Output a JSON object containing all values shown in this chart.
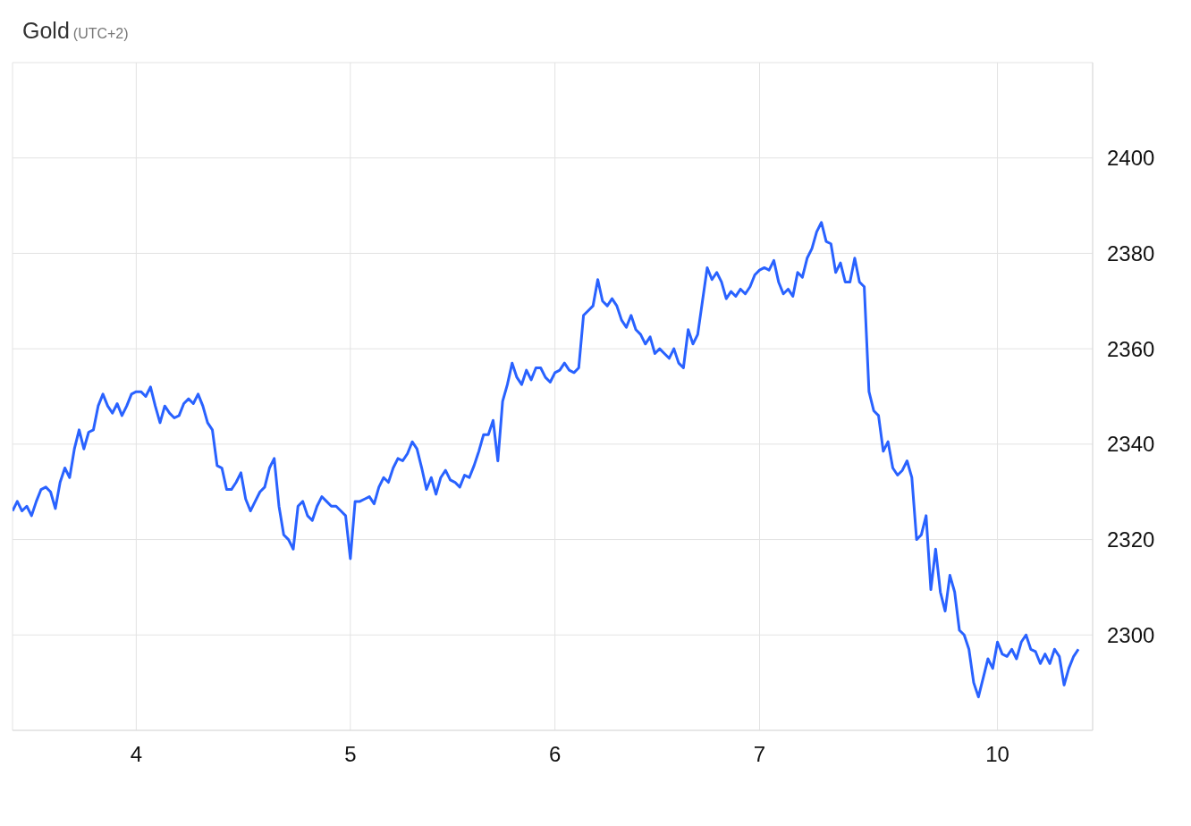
{
  "chart_data": {
    "type": "line",
    "title": "Gold",
    "subtitle": "(UTC+2)",
    "categories": [
      null,
      null,
      null,
      null,
      null,
      null,
      null,
      null,
      null,
      null,
      null,
      null,
      null,
      null,
      null,
      null,
      null,
      null,
      null,
      null,
      null,
      null,
      null,
      null,
      null,
      null,
      "4",
      null,
      null,
      null,
      null,
      null,
      null,
      null,
      null,
      null,
      null,
      null,
      null,
      null,
      null,
      null,
      null,
      null,
      null,
      null,
      null,
      null,
      null,
      null,
      null,
      null,
      null,
      null,
      null,
      null,
      null,
      null,
      null,
      null,
      null,
      null,
      null,
      null,
      null,
      null,
      null,
      null,
      null,
      null,
      null,
      "5",
      null,
      null,
      null,
      null,
      null,
      null,
      null,
      null,
      null,
      null,
      null,
      null,
      null,
      null,
      null,
      null,
      null,
      null,
      null,
      null,
      null,
      null,
      null,
      null,
      null,
      null,
      null,
      null,
      null,
      null,
      null,
      null,
      null,
      null,
      null,
      null,
      null,
      null,
      null,
      null,
      null,
      null,
      "6",
      null,
      null,
      null,
      null,
      null,
      null,
      null,
      null,
      null,
      null,
      null,
      null,
      null,
      null,
      null,
      null,
      null,
      null,
      null,
      null,
      null,
      null,
      null,
      null,
      null,
      null,
      null,
      null,
      null,
      null,
      null,
      null,
      null,
      null,
      null,
      null,
      null,
      null,
      null,
      null,
      null,
      null,
      "7",
      null,
      null,
      null,
      null,
      null,
      null,
      null,
      null,
      null,
      null,
      null,
      null,
      null,
      null,
      null,
      null,
      null,
      null,
      null,
      null,
      null,
      null,
      null,
      null,
      null,
      null,
      null,
      null,
      null,
      null,
      null,
      null,
      null,
      null,
      null,
      null,
      null,
      null,
      null,
      null,
      null,
      null,
      null,
      null,
      null,
      null,
      null,
      null,
      null,
      "10",
      null,
      null,
      null,
      null,
      null,
      null,
      null,
      null,
      null,
      null,
      null,
      null,
      null,
      null,
      null,
      null,
      null,
      null,
      null,
      null
    ],
    "series": [
      {
        "color": "#2962ff",
        "values": [
          2326,
          2328,
          2326,
          2327,
          2325,
          2328,
          2330.5,
          2331,
          2330,
          2326.5,
          2332,
          2335,
          2333,
          2339,
          2343,
          2339,
          2342.5,
          2343,
          2348,
          2350.5,
          2348,
          2346.5,
          2348.5,
          2346,
          2348,
          2350.5,
          2351,
          2351,
          2350,
          2352,
          2348,
          2344.5,
          2348,
          2346.5,
          2345.5,
          2346,
          2348.5,
          2349.5,
          2348.5,
          2350.5,
          2348,
          2344.5,
          2343,
          2335.5,
          2335,
          2330.5,
          2330.5,
          2332,
          2334,
          2328.5,
          2326,
          2328,
          2330,
          2331,
          2335,
          2337,
          2327,
          2321,
          2320,
          2318,
          2327,
          2328,
          2325,
          2324,
          2327,
          2329,
          2328,
          2327,
          2327,
          2326,
          2325,
          2316,
          2328,
          2328,
          2328.5,
          2329,
          2327.5,
          2331,
          2333,
          2332,
          2335,
          2337,
          2336.5,
          2338,
          2340.5,
          2339,
          2335,
          2330.5,
          2333,
          2329.5,
          2333,
          2334.5,
          2332.5,
          2332,
          2331,
          2333.5,
          2333,
          2335.5,
          2338.5,
          2342,
          2342,
          2345,
          2336.5,
          2349,
          2352.5,
          2357,
          2354,
          2352.5,
          2355.5,
          2353.5,
          2356,
          2356,
          2354,
          2353,
          2355,
          2355.5,
          2357,
          2355.5,
          2355,
          2356,
          2367,
          2368,
          2369,
          2374.5,
          2370,
          2369,
          2370.5,
          2369,
          2366,
          2364.5,
          2367,
          2364,
          2363,
          2361,
          2362.5,
          2359,
          2360,
          2359,
          2358,
          2360,
          2357,
          2356,
          2364,
          2361,
          2363,
          2370,
          2377,
          2374.5,
          2376,
          2374,
          2370.5,
          2372,
          2371,
          2372.5,
          2371.5,
          2373,
          2375.5,
          2376.5,
          2377,
          2376.5,
          2378.5,
          2374,
          2371.5,
          2372.5,
          2371,
          2376,
          2375,
          2379,
          2381,
          2384.5,
          2386.5,
          2382.5,
          2382,
          2376,
          2378,
          2374,
          2374,
          2379,
          2374,
          2373,
          2351,
          2347,
          2346,
          2338.5,
          2340.5,
          2335,
          2333.5,
          2334.5,
          2336.5,
          2333,
          2320,
          2321,
          2325,
          2309.5,
          2318,
          2309,
          2305,
          2312.5,
          2309,
          2301,
          2300,
          2297,
          2290,
          2287,
          2291,
          2295,
          2293,
          2298.5,
          2296,
          2295.5,
          2297,
          2295,
          2298.5,
          2300,
          2297,
          2296.5,
          2294,
          2296,
          2294,
          2297,
          2295.5,
          2289.5,
          2293,
          2295.5,
          2297,
          null,
          null,
          null
        ]
      }
    ],
    "ylim": [
      2280,
      2420
    ],
    "yticks": [
      2300,
      2320,
      2340,
      2360,
      2380,
      2400
    ],
    "grid": true,
    "legend": false,
    "marker": "none",
    "line_style": "solid"
  }
}
